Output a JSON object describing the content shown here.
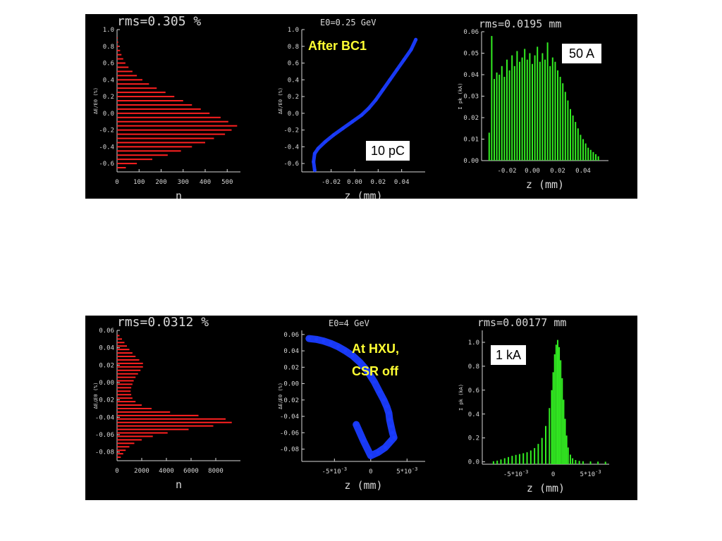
{
  "chart_data": [
    {
      "id": "top-left",
      "type": "bar",
      "orientation": "horizontal",
      "title": "rms=0.305 %",
      "xlabel": "n",
      "ylabel": "ΔE/E0 (%)",
      "xlim": [
        0,
        560
      ],
      "ylim": [
        -0.7,
        1.0
      ],
      "xticks": [
        "0",
        "100",
        "200",
        "300",
        "400",
        "500"
      ],
      "xtick_vals": [
        0,
        100,
        200,
        300,
        400,
        500
      ],
      "yticks": [
        "-0.6",
        "-0.4",
        "-0.2",
        "0.0",
        "0.2",
        "0.4",
        "0.6",
        "0.8",
        "1.0"
      ],
      "ytick_vals": [
        -0.6,
        -0.4,
        -0.2,
        0,
        0.2,
        0.4,
        0.6,
        0.8,
        1.0
      ],
      "color": "#ff2020",
      "y": [
        -0.65,
        -0.6,
        -0.55,
        -0.5,
        -0.45,
        -0.4,
        -0.35,
        -0.3,
        -0.25,
        -0.2,
        -0.15,
        -0.1,
        -0.05,
        0,
        0.05,
        0.1,
        0.15,
        0.2,
        0.25,
        0.3,
        0.35,
        0.4,
        0.45,
        0.5,
        0.55,
        0.6,
        0.65,
        0.7,
        0.75,
        0.8,
        0.85,
        0.9
      ],
      "values": [
        40,
        90,
        160,
        230,
        290,
        340,
        400,
        440,
        490,
        520,
        545,
        505,
        470,
        420,
        380,
        340,
        300,
        260,
        220,
        180,
        145,
        115,
        90,
        70,
        52,
        38,
        28,
        20,
        14,
        9,
        5,
        3
      ]
    },
    {
      "id": "top-middle",
      "type": "scatter",
      "title": "E0=0.25 GeV",
      "xlabel": "z (mm)",
      "ylabel": "ΔE/E0 (%)",
      "xlim": [
        -0.045,
        0.06
      ],
      "ylim": [
        -0.7,
        1.0
      ],
      "xticks": [
        "-0.02",
        "0.00",
        "0.02",
        "0.04"
      ],
      "xtick_vals": [
        -0.02,
        0,
        0.02,
        0.04
      ],
      "yticks": [
        "-0.6",
        "-0.4",
        "-0.2",
        "0.0",
        "0.2",
        "0.4",
        "0.6",
        "0.8",
        "1.0"
      ],
      "ytick_vals": [
        -0.6,
        -0.4,
        -0.2,
        0,
        0.2,
        0.4,
        0.6,
        0.8,
        1.0
      ],
      "color": "#1a3cff",
      "x": [
        -0.034,
        -0.035,
        -0.034,
        -0.031,
        -0.025,
        -0.018,
        -0.01,
        -0.002,
        0.006,
        0.012,
        0.018,
        0.024,
        0.03,
        0.036,
        0.042,
        0.048,
        0.052
      ],
      "values": [
        -0.68,
        -0.58,
        -0.48,
        -0.42,
        -0.34,
        -0.26,
        -0.18,
        -0.1,
        -0.02,
        0.06,
        0.16,
        0.28,
        0.4,
        0.52,
        0.64,
        0.76,
        0.88
      ],
      "annotations": [
        {
          "text": "After BC1",
          "style": "yellow-bold"
        },
        {
          "text": "10 pC",
          "style": "black-box"
        }
      ]
    },
    {
      "id": "top-right",
      "type": "bar",
      "title": "rms=0.0195 mm",
      "xlabel": "z (mm)",
      "ylabel": "I pk (kA)",
      "xlim": [
        -0.04,
        0.06
      ],
      "ylim": [
        0,
        0.06
      ],
      "xticks": [
        "-0.02",
        "0.00",
        "0.02",
        "0.04"
      ],
      "xtick_vals": [
        -0.02,
        0,
        0.02,
        0.04
      ],
      "yticks": [
        "0.00",
        "0.01",
        "0.02",
        "0.03",
        "0.04",
        "0.05",
        "0.06"
      ],
      "ytick_vals": [
        0,
        0.01,
        0.02,
        0.03,
        0.04,
        0.05,
        0.06
      ],
      "color": "#33ee22",
      "x": [
        -0.034,
        -0.032,
        -0.03,
        -0.028,
        -0.026,
        -0.024,
        -0.022,
        -0.02,
        -0.018,
        -0.016,
        -0.014,
        -0.012,
        -0.01,
        -0.008,
        -0.006,
        -0.004,
        -0.002,
        0.0,
        0.002,
        0.004,
        0.006,
        0.008,
        0.01,
        0.012,
        0.014,
        0.016,
        0.018,
        0.02,
        0.022,
        0.024,
        0.026,
        0.028,
        0.03,
        0.032,
        0.034,
        0.036,
        0.038,
        0.04,
        0.042,
        0.044,
        0.046,
        0.048,
        0.05,
        0.052
      ],
      "values": [
        0.013,
        0.058,
        0.038,
        0.041,
        0.04,
        0.044,
        0.039,
        0.047,
        0.042,
        0.049,
        0.044,
        0.051,
        0.046,
        0.048,
        0.052,
        0.047,
        0.05,
        0.045,
        0.049,
        0.053,
        0.046,
        0.05,
        0.047,
        0.055,
        0.044,
        0.048,
        0.046,
        0.042,
        0.039,
        0.036,
        0.032,
        0.028,
        0.024,
        0.021,
        0.018,
        0.015,
        0.012,
        0.01,
        0.008,
        0.006,
        0.005,
        0.004,
        0.003,
        0.002
      ],
      "annotations": [
        {
          "text": "50 A",
          "style": "black-box"
        }
      ]
    },
    {
      "id": "bottom-left",
      "type": "bar",
      "orientation": "horizontal",
      "title": "rms=0.0312 %",
      "xlabel": "n",
      "ylabel": "ΔE/E0 (%)",
      "xlim": [
        0,
        10000
      ],
      "ylim": [
        -0.09,
        0.06
      ],
      "xticks": [
        "0",
        "2000",
        "4000",
        "6000",
        "8000"
      ],
      "xtick_vals": [
        0,
        2000,
        4000,
        6000,
        8000
      ],
      "yticks": [
        "-0.08",
        "-0.06",
        "-0.04",
        "-0.02",
        "0.00",
        "0.02",
        "0.04",
        "0.06"
      ],
      "ytick_vals": [
        -0.08,
        -0.06,
        -0.04,
        -0.02,
        0,
        0.02,
        0.04,
        0.06
      ],
      "color": "#ff2020",
      "y": [
        -0.086,
        -0.082,
        -0.078,
        -0.074,
        -0.07,
        -0.066,
        -0.062,
        -0.058,
        -0.054,
        -0.05,
        -0.046,
        -0.042,
        -0.038,
        -0.034,
        -0.03,
        -0.026,
        -0.022,
        -0.018,
        -0.014,
        -0.01,
        -0.006,
        -0.002,
        0.002,
        0.006,
        0.01,
        0.014,
        0.018,
        0.022,
        0.026,
        0.03,
        0.034,
        0.038,
        0.042,
        0.046,
        0.05,
        0.054
      ],
      "values": [
        300,
        500,
        700,
        1000,
        1400,
        2000,
        2900,
        4100,
        5800,
        7800,
        9300,
        8800,
        6600,
        4300,
        2800,
        2000,
        1500,
        1250,
        1150,
        1100,
        1150,
        1250,
        1350,
        1500,
        1700,
        1900,
        2100,
        2100,
        1800,
        1500,
        1250,
        1000,
        800,
        600,
        400,
        200
      ]
    },
    {
      "id": "bottom-middle",
      "type": "scatter",
      "title": "E0=4 GeV",
      "xlabel": "z (mm)",
      "ylabel": "ΔE/E0 (%)",
      "xlim": [
        -0.0095,
        0.0075
      ],
      "ylim": [
        -0.095,
        0.065
      ],
      "xticks": [
        "-5*10^-3",
        "0",
        "5*10^-3"
      ],
      "xtick_vals": [
        -0.005,
        0,
        0.005
      ],
      "yticks": [
        "-0.08",
        "-0.06",
        "-0.04",
        "-0.02",
        "0.00",
        "0.02",
        "0.04",
        "0.06"
      ],
      "ytick_vals": [
        -0.08,
        -0.06,
        -0.04,
        -0.02,
        0,
        0.02,
        0.04,
        0.06
      ],
      "color": "#1a3cff",
      "x": [
        -0.0085,
        -0.0075,
        -0.0065,
        -0.0055,
        -0.0045,
        -0.0035,
        -0.0025,
        -0.0015,
        -0.0005,
        0.0005,
        0.0012,
        0.0018,
        0.0022,
        0.0025,
        0.0026,
        0.0028,
        0.003,
        0.0032,
        0.0028,
        0.002,
        0.001,
        0.0,
        -0.001,
        -0.002
      ],
      "values": [
        0.055,
        0.054,
        0.052,
        0.049,
        0.045,
        0.04,
        0.034,
        0.026,
        0.016,
        0.002,
        -0.01,
        -0.02,
        -0.028,
        -0.036,
        -0.044,
        -0.052,
        -0.06,
        -0.066,
        -0.07,
        -0.078,
        -0.084,
        -0.088,
        -0.07,
        -0.05
      ],
      "annotations": [
        {
          "text": "At HXU,",
          "style": "yellow-bold"
        },
        {
          "text": "CSR off",
          "style": "yellow-bold"
        }
      ]
    },
    {
      "id": "bottom-right",
      "type": "bar",
      "title": "rms=0.00177 mm",
      "xlabel": "z (mm)",
      "ylabel": "I pk (kA)",
      "xlim": [
        -0.0095,
        0.0075
      ],
      "ylim": [
        -0.02,
        1.1
      ],
      "xticks": [
        "-5*10^-3",
        "0",
        "5*10^-3"
      ],
      "xtick_vals": [
        -0.005,
        0,
        0.005
      ],
      "yticks": [
        "0.0",
        "0.2",
        "0.4",
        "0.6",
        "0.8",
        "1.0"
      ],
      "ytick_vals": [
        0,
        0.2,
        0.4,
        0.6,
        0.8,
        1.0
      ],
      "color": "#33ee22",
      "x": [
        -0.008,
        -0.0075,
        -0.007,
        -0.0065,
        -0.006,
        -0.0055,
        -0.005,
        -0.0045,
        -0.004,
        -0.0035,
        -0.003,
        -0.0025,
        -0.002,
        -0.0015,
        -0.001,
        -0.0005,
        -0.0002,
        0.0,
        0.0002,
        0.0004,
        0.0006,
        0.0008,
        0.001,
        0.0012,
        0.0014,
        0.0016,
        0.0018,
        0.002,
        0.0023,
        0.0026,
        0.003,
        0.0035,
        0.004,
        0.005,
        0.006,
        0.007
      ],
      "values": [
        0.005,
        0.01,
        0.02,
        0.03,
        0.04,
        0.05,
        0.058,
        0.065,
        0.072,
        0.08,
        0.095,
        0.115,
        0.15,
        0.2,
        0.3,
        0.45,
        0.6,
        0.75,
        0.9,
        0.98,
        1.02,
        0.96,
        0.85,
        0.7,
        0.52,
        0.36,
        0.22,
        0.12,
        0.06,
        0.03,
        0.015,
        0.008,
        0.005,
        0.003,
        0.002,
        0.001
      ],
      "annotations": [
        {
          "text": "1 kA",
          "style": "black-box"
        }
      ]
    }
  ]
}
